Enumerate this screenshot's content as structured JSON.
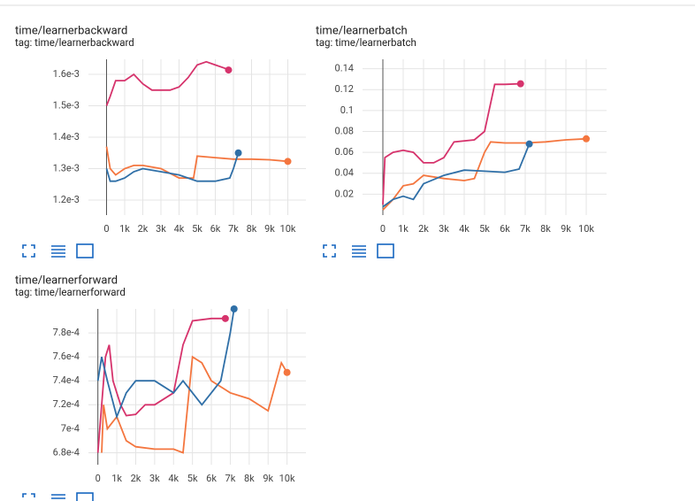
{
  "chart_data": [
    {
      "type": "line",
      "title": "time/learnerbackward",
      "subtitle": "tag: time/learnerbackward",
      "xlim": [
        -1000,
        11000
      ],
      "ylim": [
        0.001152,
        0.001648
      ],
      "xticks": [
        0,
        {
          "value": 1000,
          "label": "1k"
        },
        {
          "value": 2000,
          "label": "2k"
        },
        {
          "value": 3000,
          "label": "3k"
        },
        {
          "value": 4000,
          "label": "4k"
        },
        {
          "value": 5000,
          "label": "5k"
        },
        {
          "value": 6000,
          "label": "6k"
        },
        {
          "value": 7000,
          "label": "7k"
        },
        {
          "value": 8000,
          "label": "8k"
        },
        {
          "value": 9000,
          "label": "9k"
        },
        {
          "value": 10000,
          "label": "10k"
        }
      ],
      "yticks": [
        {
          "value": 0.0012,
          "label": "1.2e-3"
        },
        {
          "value": 0.0013,
          "label": "1.3e-3"
        },
        {
          "value": 0.0014,
          "label": "1.4e-3"
        },
        {
          "value": 0.0015,
          "label": "1.5e-3"
        },
        {
          "value": 0.0016,
          "label": "1.6e-3"
        }
      ],
      "grid": true,
      "series": [
        {
          "color": "#d6336c",
          "x": [
            0,
            200,
            500,
            1000,
            1500,
            2000,
            2500,
            3000,
            3500,
            4000,
            4500,
            5000,
            5500,
            6000,
            6500,
            6730
          ],
          "values": [
            0.0015,
            0.00153,
            0.00158,
            0.00158,
            0.0016,
            0.00157,
            0.00155,
            0.00155,
            0.00155,
            0.00156,
            0.00159,
            0.00163,
            0.00164,
            0.00163,
            0.00162,
            0.001614
          ]
        },
        {
          "color": "#f4763f",
          "x": [
            0,
            200,
            500,
            1000,
            1500,
            2000,
            3000,
            4000,
            4800,
            5000,
            6000,
            7000,
            8000,
            9000,
            10000
          ],
          "values": [
            0.00137,
            0.0013,
            0.00128,
            0.0013,
            0.00131,
            0.00131,
            0.0013,
            0.00127,
            0.00127,
            0.00134,
            0.001335,
            0.00133,
            0.00133,
            0.001328,
            0.001323
          ]
        },
        {
          "color": "#2f6fa7",
          "x": [
            0,
            200,
            500,
            1000,
            1500,
            2000,
            3000,
            4000,
            5000,
            6000,
            6800,
            7000,
            7270
          ],
          "values": [
            0.0013,
            0.00126,
            0.00126,
            0.00127,
            0.00129,
            0.0013,
            0.00129,
            0.00128,
            0.00126,
            0.00126,
            0.00127,
            0.0013,
            0.00135
          ]
        }
      ]
    },
    {
      "type": "line",
      "title": "time/learnerbatch",
      "subtitle": "tag: time/learnerbatch",
      "xlim": [
        -1000,
        11000
      ],
      "ylim": [
        0,
        0.149
      ],
      "xticks": [
        0,
        {
          "value": 1000,
          "label": "1k"
        },
        {
          "value": 2000,
          "label": "2k"
        },
        {
          "value": 3000,
          "label": "3k"
        },
        {
          "value": 4000,
          "label": "4k"
        },
        {
          "value": 5000,
          "label": "5k"
        },
        {
          "value": 6000,
          "label": "6k"
        },
        {
          "value": 7000,
          "label": "7k"
        },
        {
          "value": 8000,
          "label": "8k"
        },
        {
          "value": 9000,
          "label": "9k"
        },
        {
          "value": 10000,
          "label": "10k"
        }
      ],
      "yticks": [
        0.02,
        0.04,
        0.06,
        0.08,
        0.1,
        0.12,
        0.14
      ],
      "grid": true,
      "series": [
        {
          "color": "#d6336c",
          "x": [
            0,
            100,
            500,
            1000,
            1500,
            2000,
            2500,
            3000,
            3500,
            4500,
            5000,
            5500,
            6000,
            6770
          ],
          "values": [
            0.01,
            0.055,
            0.06,
            0.062,
            0.06,
            0.05,
            0.05,
            0.055,
            0.07,
            0.072,
            0.08,
            0.125,
            0.125,
            0.1256
          ]
        },
        {
          "color": "#f4763f",
          "x": [
            0,
            500,
            1000,
            1500,
            2000,
            3000,
            4000,
            4500,
            5000,
            5300,
            6000,
            7000,
            8000,
            9000,
            10000
          ],
          "values": [
            0.005,
            0.015,
            0.028,
            0.03,
            0.038,
            0.035,
            0.033,
            0.035,
            0.06,
            0.07,
            0.069,
            0.069,
            0.07,
            0.072,
            0.073
          ]
        },
        {
          "color": "#2f6fa7",
          "x": [
            0,
            500,
            1000,
            1500,
            2000,
            3000,
            4000,
            5000,
            6000,
            6700,
            7200
          ],
          "values": [
            0.008,
            0.015,
            0.018,
            0.015,
            0.03,
            0.038,
            0.043,
            0.042,
            0.041,
            0.044,
            0.068
          ]
        }
      ]
    },
    {
      "type": "line",
      "title": "time/learnerforward",
      "subtitle": "tag: time/learnerforward",
      "xlim": [
        -500,
        11000
      ],
      "ylim": [
        0.00067,
        0.0008
      ],
      "xticks": [
        0,
        {
          "value": 1000,
          "label": "1k"
        },
        {
          "value": 2000,
          "label": "2k"
        },
        {
          "value": 3000,
          "label": "3k"
        },
        {
          "value": 4000,
          "label": "4k"
        },
        {
          "value": 5000,
          "label": "5k"
        },
        {
          "value": 6000,
          "label": "6k"
        },
        {
          "value": 7000,
          "label": "7k"
        },
        {
          "value": 8000,
          "label": "8k"
        },
        {
          "value": 9000,
          "label": "9k"
        },
        {
          "value": 10000,
          "label": "10k"
        }
      ],
      "yticks": [
        {
          "value": 0.00068,
          "label": "6.8e-4"
        },
        {
          "value": 0.0007,
          "label": "7e-4"
        },
        {
          "value": 0.00072,
          "label": "7.2e-4"
        },
        {
          "value": 0.00074,
          "label": "7.4e-4"
        },
        {
          "value": 0.00076,
          "label": "7.6e-4"
        },
        {
          "value": 0.00078,
          "label": "7.8e-4"
        }
      ],
      "grid": true,
      "series": [
        {
          "color": "#d6336c",
          "x": [
            0,
            200,
            400,
            600,
            800,
            1000,
            1200,
            1500,
            2000,
            2500,
            3000,
            4000,
            4500,
            5000,
            6000,
            6740
          ],
          "values": [
            0.00068,
            0.00072,
            0.00076,
            0.00077,
            0.00074,
            0.00073,
            0.00072,
            0.000711,
            0.000712,
            0.00072,
            0.00072,
            0.00073,
            0.00077,
            0.00079,
            0.000792,
            0.000792
          ]
        },
        {
          "color": "#f4763f",
          "x": [
            200,
            300,
            500,
            1000,
            1500,
            2000,
            3000,
            4000,
            4500,
            5000,
            5500,
            6000,
            7000,
            8000,
            9000,
            9700,
            10000
          ],
          "values": [
            0.00068,
            0.00072,
            0.0007,
            0.00071,
            0.00069,
            0.000685,
            0.000683,
            0.000683,
            0.00068,
            0.00076,
            0.000755,
            0.00074,
            0.00073,
            0.000725,
            0.000715,
            0.000755,
            0.000747
          ]
        },
        {
          "color": "#2f6fa7",
          "x": [
            0,
            200,
            500,
            1000,
            1500,
            2000,
            3000,
            4000,
            4500,
            5000,
            5500,
            6000,
            6500,
            7000,
            7200
          ],
          "values": [
            0.00074,
            0.00076,
            0.00074,
            0.00071,
            0.00073,
            0.00074,
            0.00074,
            0.00073,
            0.00074,
            0.00073,
            0.00072,
            0.00073,
            0.00074,
            0.00078,
            0.0008
          ]
        }
      ]
    }
  ]
}
